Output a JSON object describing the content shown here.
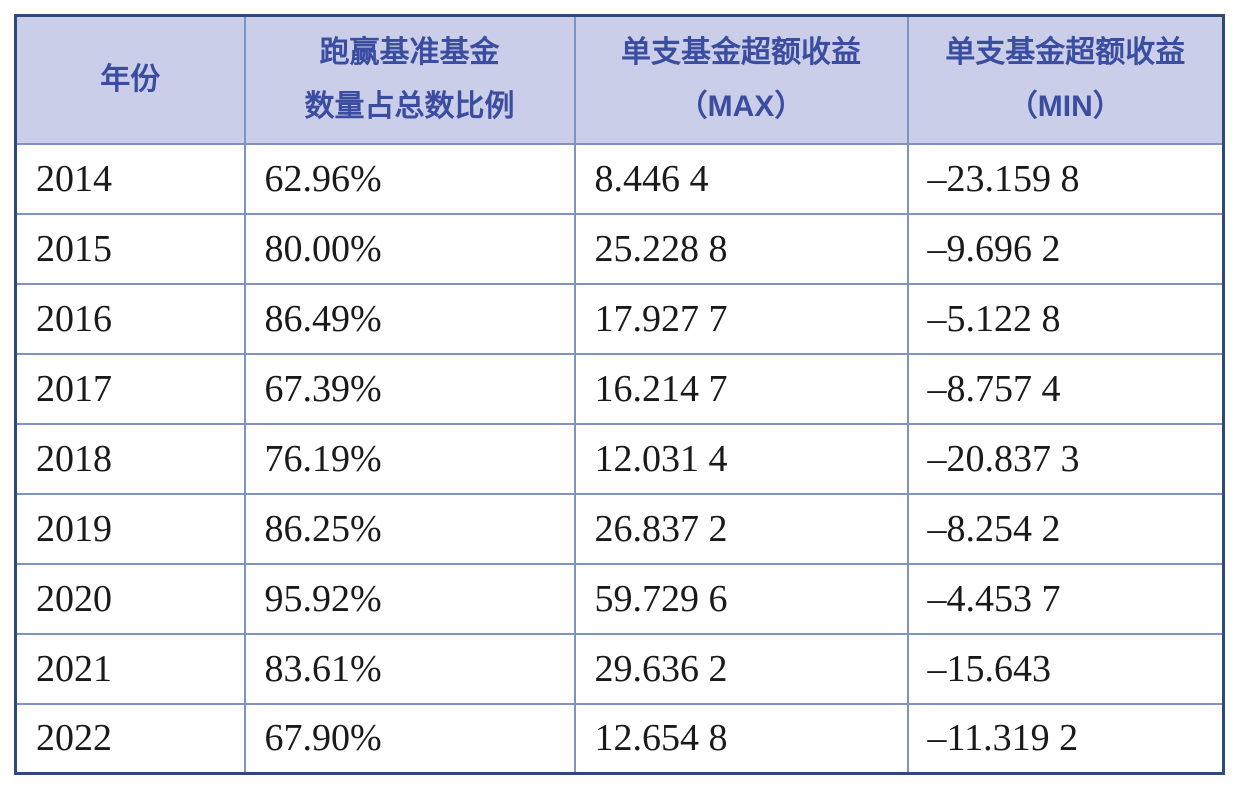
{
  "table": {
    "columns": [
      {
        "key": "year",
        "label_lines": [
          "年份"
        ]
      },
      {
        "key": "outperform-ratio",
        "label_lines": [
          "跑赢基准基金",
          "数量占总数比例"
        ]
      },
      {
        "key": "excess-return-max",
        "label_lines": [
          "单支基金超额收益",
          "（MAX）"
        ]
      },
      {
        "key": "excess-return-min",
        "label_lines": [
          "单支基金超额收益",
          "（MIN）"
        ]
      }
    ],
    "rows": [
      [
        "2014",
        "62.96%",
        "8.446 4",
        "–23.159 8"
      ],
      [
        "2015",
        "80.00%",
        "25.228 8",
        "–9.696 2"
      ],
      [
        "2016",
        "86.49%",
        "17.927 7",
        "–5.122 8"
      ],
      [
        "2017",
        "67.39%",
        "16.214 7",
        "–8.757 4"
      ],
      [
        "2018",
        "76.19%",
        "12.031 4",
        "–20.837 3"
      ],
      [
        "2019",
        "86.25%",
        "26.837 2",
        "–8.254 2"
      ],
      [
        "2020",
        "95.92%",
        "59.729 6",
        "–4.453 7"
      ],
      [
        "2021",
        "83.61%",
        "29.636 2",
        "–15.643"
      ],
      [
        "2022",
        "67.90%",
        "12.654 8",
        "–11.319 2"
      ]
    ]
  },
  "chart_data": {
    "type": "table",
    "title": "",
    "categories": [
      "2014",
      "2015",
      "2016",
      "2017",
      "2018",
      "2019",
      "2020",
      "2021",
      "2022"
    ],
    "columns": [
      "年份",
      "跑赢基准基金数量占总数比例",
      "单支基金超额收益（MAX）",
      "单支基金超额收益（MIN）"
    ],
    "series": [
      {
        "name": "跑赢基准基金数量占总数比例(%)",
        "values": [
          62.96,
          80.0,
          86.49,
          67.39,
          76.19,
          86.25,
          95.92,
          83.61,
          67.9
        ]
      },
      {
        "name": "单支基金超额收益（MAX）",
        "values": [
          8.4464,
          25.2288,
          17.9277,
          16.2147,
          12.0314,
          26.8372,
          59.7296,
          29.6362,
          12.6548
        ]
      },
      {
        "name": "单支基金超额收益（MIN）",
        "values": [
          -23.1598,
          -9.6962,
          -5.1228,
          -8.7574,
          -20.8373,
          -8.2542,
          -4.4537,
          -15.643,
          -11.3192
        ]
      }
    ]
  },
  "colors": {
    "border_outer": "#2e4a7d",
    "border_inner": "#7f93c0",
    "header_bg": "#cbcee8",
    "header_text": "#3a4da0",
    "body_text": "#1a1a1a",
    "page_bg": "#ffffff"
  }
}
